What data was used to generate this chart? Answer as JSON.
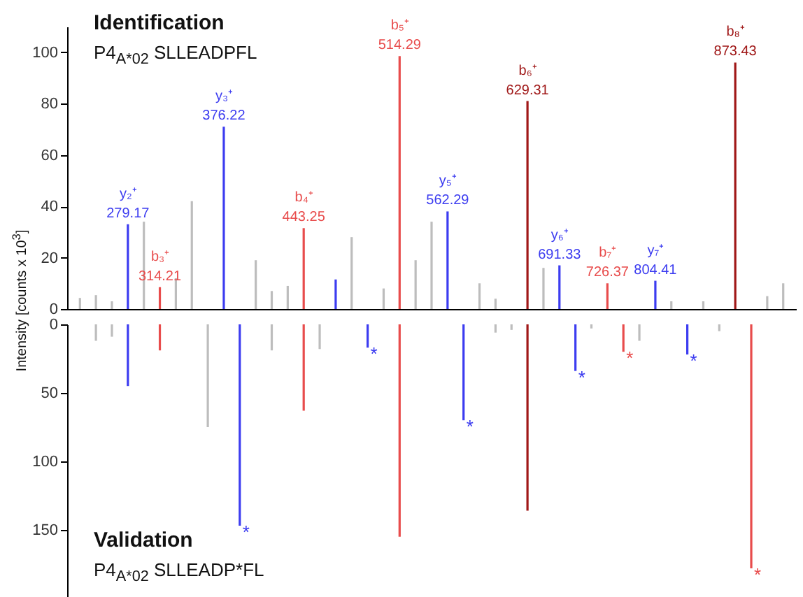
{
  "chart_data": [
    {
      "type": "bar",
      "title": "Identification",
      "subtitle": "P4$_{A*02}$ SLLEADPFL",
      "ylabel": "Intensity [counts x 10$^{3}$]",
      "ylim": [
        0,
        110
      ],
      "yticks": [
        0,
        20,
        40,
        60,
        80,
        100
      ],
      "tick_labels": "y",
      "categories": [
        null,
        null,
        null,
        null,
        null,
        null,
        null,
        null,
        null,
        null,
        null,
        null,
        null,
        null,
        null,
        null,
        null,
        null,
        null,
        null,
        null,
        null,
        null,
        null,
        null,
        null,
        null,
        null,
        null,
        null,
        null,
        null,
        null,
        null,
        null,
        null,
        null,
        null,
        null,
        null,
        null,
        null,
        null,
        null,
        null
      ],
      "series": [
        {
          "color": "#bdbdbd",
          "values": [
            4.3,
            5.4,
            3,
            null,
            34,
            null,
            12,
            42,
            null,
            null,
            null,
            19,
            7,
            9,
            null,
            null,
            null,
            28,
            null,
            8,
            null,
            19,
            34,
            null,
            null,
            10,
            4,
            null,
            null,
            16,
            null,
            null,
            null,
            null,
            null,
            null,
            null,
            3,
            null,
            3,
            null,
            null,
            null,
            5,
            10
          ]
        },
        {
          "color": "#3c3cf0",
          "values": [
            null,
            null,
            null,
            33,
            null,
            null,
            null,
            null,
            null,
            71,
            null,
            null,
            null,
            null,
            null,
            null,
            11.5,
            null,
            null,
            null,
            null,
            null,
            null,
            38,
            null,
            null,
            null,
            null,
            null,
            null,
            17,
            null,
            null,
            null,
            null,
            null,
            11,
            null,
            null,
            null,
            null,
            null,
            null,
            null,
            null
          ]
        },
        {
          "color": "#e84c4c",
          "values": [
            null,
            null,
            null,
            null,
            null,
            8.5,
            null,
            null,
            null,
            null,
            null,
            null,
            null,
            null,
            31.5,
            null,
            null,
            null,
            null,
            null,
            98.5,
            null,
            null,
            null,
            null,
            null,
            null,
            null,
            null,
            null,
            null,
            null,
            null,
            10,
            null,
            null,
            null,
            null,
            null,
            null,
            null,
            null,
            null,
            null,
            null
          ]
        },
        {
          "color": "#a01818",
          "values": [
            null,
            null,
            null,
            null,
            null,
            null,
            null,
            null,
            null,
            null,
            null,
            null,
            null,
            null,
            null,
            null,
            null,
            null,
            null,
            null,
            null,
            null,
            null,
            null,
            null,
            null,
            null,
            null,
            81,
            null,
            null,
            null,
            null,
            null,
            null,
            null,
            null,
            null,
            null,
            null,
            null,
            96,
            null,
            null,
            null
          ]
        }
      ],
      "annotations": [
        {
          "text": "y₂⁺\n279.17",
          "y": 33
        },
        {
          "text": "b₃⁺\n314.21",
          "y": 8.5
        },
        {
          "text": "y₃⁺\n376.22",
          "y": 71
        },
        {
          "text": "b₄⁺\n443.25",
          "y": 31.5
        },
        {
          "text": "b₅⁺\n514.29",
          "y": 98.5
        },
        {
          "text": "y₅⁺\n562.29",
          "y": 38
        },
        {
          "text": "b₆⁺\n629.31",
          "y": 81
        },
        {
          "text": "y₆⁺\n691.33",
          "y": 17
        },
        {
          "text": "b₇⁺\n726.37",
          "y": 10
        },
        {
          "text": "y₇⁺\n804.41",
          "y": 11
        },
        {
          "text": "b₈⁺\n873.43",
          "y": 96
        }
      ]
    },
    {
      "type": "bar",
      "title": "Validation",
      "subtitle": "P4$_{A*02}$ SLLEADP*FL",
      "ylim": [
        200,
        0
      ],
      "yticks": [
        0,
        50,
        100,
        150
      ],
      "tick_labels": "y",
      "categories": [
        null,
        null,
        null,
        null,
        null,
        null,
        null,
        null,
        null,
        null,
        null,
        null,
        null,
        null,
        null,
        null,
        null,
        null,
        null,
        null,
        null,
        null,
        null,
        null,
        null,
        null,
        null,
        null,
        null,
        null,
        null,
        null,
        null,
        null,
        null,
        null,
        null,
        null,
        null,
        null,
        null,
        null,
        null,
        null,
        null
      ],
      "series": [
        {
          "color": "#bdbdbd",
          "values": [
            null,
            12,
            9,
            null,
            null,
            null,
            null,
            null,
            75,
            null,
            null,
            null,
            19,
            null,
            null,
            18,
            null,
            null,
            null,
            null,
            null,
            null,
            null,
            null,
            null,
            null,
            6,
            4,
            null,
            null,
            null,
            null,
            3,
            null,
            null,
            12,
            null,
            null,
            null,
            null,
            5,
            null,
            null,
            null,
            null
          ]
        },
        {
          "color": "#3c3cf0",
          "values": [
            null,
            null,
            null,
            45,
            null,
            null,
            null,
            null,
            null,
            null,
            147,
            null,
            null,
            null,
            null,
            null,
            null,
            null,
            17,
            null,
            null,
            null,
            null,
            null,
            70,
            null,
            null,
            null,
            null,
            null,
            null,
            34,
            null,
            null,
            null,
            null,
            null,
            null,
            22,
            null,
            null,
            null,
            null,
            null,
            null
          ]
        },
        {
          "color": "#e84c4c",
          "values": [
            null,
            null,
            null,
            null,
            null,
            19,
            null,
            null,
            null,
            null,
            null,
            null,
            null,
            null,
            63,
            null,
            null,
            null,
            null,
            null,
            155,
            null,
            null,
            null,
            null,
            null,
            null,
            null,
            null,
            null,
            null,
            null,
            null,
            null,
            20,
            null,
            null,
            null,
            null,
            null,
            null,
            null,
            178,
            null,
            null
          ]
        },
        {
          "color": "#a01818",
          "values": [
            null,
            null,
            null,
            null,
            null,
            null,
            null,
            null,
            null,
            null,
            null,
            null,
            null,
            null,
            null,
            null,
            null,
            null,
            null,
            null,
            null,
            null,
            null,
            null,
            null,
            null,
            null,
            null,
            136,
            null,
            null,
            null,
            null,
            null,
            null,
            null,
            null,
            null,
            null,
            null,
            null,
            null,
            null,
            null,
            null
          ]
        }
      ],
      "annotations": [
        {
          "text": "*",
          "y": 147
        },
        {
          "text": "*",
          "y": 17
        },
        {
          "text": "*",
          "y": 70
        },
        {
          "text": "*",
          "y": 34
        },
        {
          "text": "*",
          "y": 20
        },
        {
          "text": "*",
          "y": 22
        },
        {
          "text": "*",
          "y": 178
        }
      ]
    }
  ]
}
